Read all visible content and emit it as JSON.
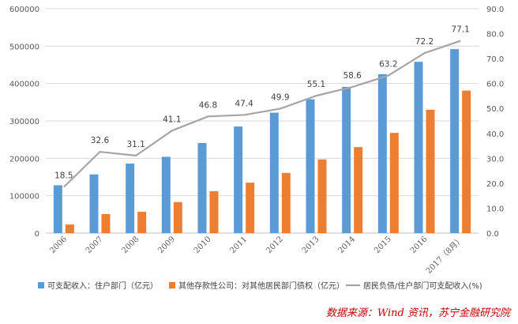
{
  "chart_data": {
    "type": "bar",
    "categories": [
      "2006",
      "2007",
      "2008",
      "2009",
      "2010",
      "2011",
      "2012",
      "2013",
      "2014",
      "2015",
      "2016",
      "2017（8月）"
    ],
    "series": [
      {
        "name": "可支配收入：住户部门（亿元）",
        "type": "bar",
        "axis": "left",
        "color": "#5b9bd5",
        "values": [
          128000,
          157000,
          186000,
          204000,
          241000,
          285000,
          322000,
          358000,
          391000,
          425000,
          458000,
          492000
        ]
      },
      {
        "name": "其他存款性公司：对其他居民部门债权（亿元）",
        "type": "bar",
        "axis": "left",
        "color": "#ed7d31",
        "values": [
          23000,
          51000,
          57000,
          83000,
          112000,
          135000,
          161000,
          197000,
          230000,
          268000,
          330000,
          381000
        ]
      },
      {
        "name": "居民负债/住户部门可支配收入(%)",
        "type": "line",
        "axis": "right",
        "color": "#a5a5a5",
        "values": [
          18.5,
          32.6,
          31.1,
          41.1,
          46.8,
          47.4,
          49.9,
          55.1,
          58.6,
          63.2,
          72.2,
          77.1
        ],
        "labels": [
          "18.5",
          "32.6",
          "31.1",
          "41.1",
          "46.8",
          "47.4",
          "49.9",
          "55.1",
          "58.6",
          "63.2",
          "72.2",
          "77.1"
        ]
      }
    ],
    "ylim_left": [
      0,
      600000
    ],
    "ylim_right": [
      0,
      90
    ],
    "left_ticks": [
      "0",
      "100000",
      "200000",
      "300000",
      "400000",
      "500000",
      "600000"
    ],
    "right_ticks": [
      "0.0",
      "10.0",
      "20.0",
      "30.0",
      "40.0",
      "50.0",
      "60.0",
      "70.0",
      "80.0",
      "90.0"
    ],
    "grid": true,
    "legend_position": "bottom",
    "title": ""
  },
  "source_text": "数据来源：Wind 资讯，苏宁金融研究院"
}
